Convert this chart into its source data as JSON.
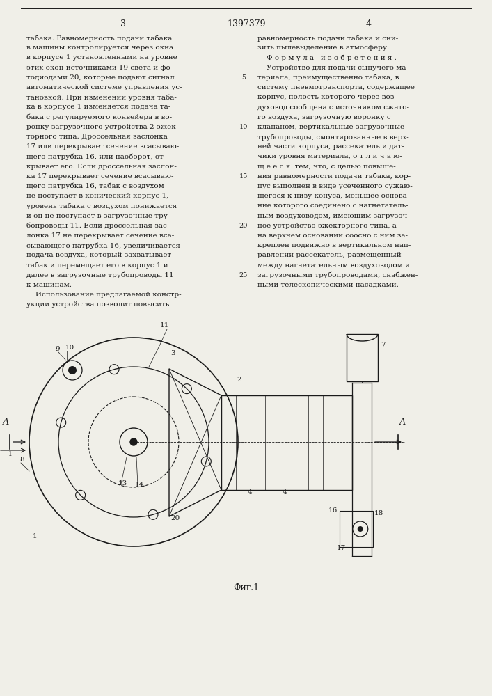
{
  "page_bg": "#f0efe8",
  "text_color": "#1a1a1a",
  "title_number": "1397379",
  "page_left": "3",
  "page_right": "4",
  "left_col_lines": [
    "табака. Равномерность подачи табака",
    "в машины контролируется через окна",
    "в корпусе 1 установленными на уровне",
    "этих окон источниками 19 света и фо-",
    "тодиодами 20, которые подают сигнал",
    "автоматической системе управления ус-",
    "тановкой. При изменении уровня таба-",
    "ка в корпусе 1 изменяется подача та-",
    "бака с регулируемого конвейера в во-",
    "ронку загрузочного устройства 2 эжек-",
    "торного типа. Дроссельная заслонка",
    "17 или перекрывает сечение всасываю-",
    "щего патрубка 16, или наоборот, от-",
    "крывает его. Если дроссельная заслон-",
    "ка 17 перекрывает сечение всасываю-",
    "щего патрубка 16, табак с воздухом",
    "не поступает в конический корпус 1,",
    "уровень табака с воздухом понижается",
    "и он не поступает в загрузочные тру-",
    "бопроводы 11. Если дроссельная зас-",
    "лонка 17 не перекрывает сечение вса-",
    "сывающего патрубка 16, увеличивается",
    "подача воздуха, который захватывает",
    "табак и перемещает его в корпус 1 и",
    "далее в загрузочные трубопроводы 11",
    "к машинам.",
    "    Использование предлагаемой констр-",
    "укции устройства позволит повысить"
  ],
  "right_col_lines": [
    "равномерность подачи табака и сни-",
    "зить пылевыделение в атмосферу.",
    "    Ф о р м у л а   и з о б р е т е н и я .",
    "    Устройство для подачи сыпучего ма-",
    "териала, преимущественно табака, в",
    "систему пневмотранспорта, содержащее",
    "корпус, полость которого через воз-",
    "духовод сообщена с источником сжато-",
    "го воздуха, загрузочную воронку с",
    "клапаном, вертикальные загрузочные",
    "трубопроводы, смонтированные в верх-",
    "ней части корпуса, рассекатель и дат-",
    "чики уровня материала, о т л и ч а ю-",
    "щ е е с я  тем, что, с целью повыше-",
    "ния равномерности подачи табака, кор-",
    "пус выполнен в виде усеченного сужаю-",
    "щегося к низу конуса, меньшее основа-",
    "ние которого соединено с нагнетатель-",
    "ным воздуховодом, имеющим загрузоч-",
    "ное устройство эжекторного типа, а",
    "на верхнем основании соосно с ним за-",
    "креплен подвижно в вертикальном нап-",
    "равлении рассекатель, размещенный",
    "между нагнетательным воздуховодом и",
    "загрузочными трубопроводами, снабжен-",
    "ными телескопическими насадками."
  ],
  "fig_caption": "Фиг.1"
}
